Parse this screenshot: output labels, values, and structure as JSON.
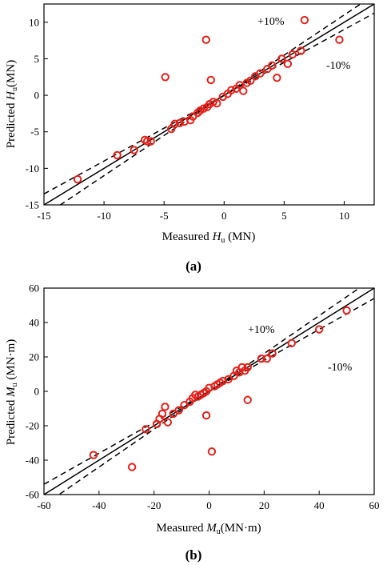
{
  "chart_data": [
    {
      "type": "scatter",
      "panel_label": "(a)",
      "xlabel": {
        "main": "Measured ",
        "italic": "H",
        "sub": "u",
        "unit": " (MN)"
      },
      "ylabel": {
        "main": "Predicted ",
        "italic": "H",
        "sub": "u",
        "unit": "(MN)"
      },
      "xlim": [
        -15,
        12.5
      ],
      "ylim": [
        -15,
        12.5
      ],
      "xticks": [
        -15,
        -10,
        -5,
        0,
        5,
        10
      ],
      "yticks": [
        -15,
        -10,
        -5,
        0,
        5,
        10
      ],
      "annotations": {
        "upper": "+10%",
        "lower": "-10%"
      },
      "marker_color": "#e8201a",
      "points": [
        [
          -12.2,
          -11.5
        ],
        [
          -8.9,
          -8.2
        ],
        [
          -7.5,
          -7.5
        ],
        [
          -6.6,
          -6.1
        ],
        [
          -6.4,
          -6.3
        ],
        [
          -6.1,
          -6.3
        ],
        [
          -4.9,
          2.5
        ],
        [
          -4.4,
          -4.6
        ],
        [
          -4.1,
          -3.9
        ],
        [
          -3.7,
          -3.8
        ],
        [
          -3.3,
          -3.6
        ],
        [
          -2.8,
          -3.4
        ],
        [
          -2.6,
          -2.9
        ],
        [
          -2.2,
          -2.4
        ],
        [
          -2.0,
          -2.1
        ],
        [
          -1.7,
          -1.8
        ],
        [
          -1.5,
          7.6
        ],
        [
          -1.4,
          -1.6
        ],
        [
          -1.2,
          -1.2
        ],
        [
          -1.1,
          2.1
        ],
        [
          -0.9,
          -0.9
        ],
        [
          -0.6,
          -1.1
        ],
        [
          -0.1,
          -0.2
        ],
        [
          0.3,
          0.2
        ],
        [
          0.6,
          0.7
        ],
        [
          1.0,
          0.9
        ],
        [
          1.3,
          1.4
        ],
        [
          1.6,
          0.6
        ],
        [
          1.9,
          1.7
        ],
        [
          2.2,
          2.0
        ],
        [
          2.6,
          2.6
        ],
        [
          3.0,
          3.0
        ],
        [
          3.6,
          3.6
        ],
        [
          4.0,
          4.1
        ],
        [
          4.4,
          2.4
        ],
        [
          4.8,
          5.0
        ],
        [
          5.3,
          4.3
        ],
        [
          5.7,
          5.6
        ],
        [
          6.4,
          6.1
        ],
        [
          6.7,
          10.3
        ],
        [
          9.6,
          7.6
        ]
      ]
    },
    {
      "type": "scatter",
      "panel_label": "(b)",
      "xlabel": {
        "main": "Measured ",
        "italic": "M",
        "sub": "u",
        "unit": "(MN·m)"
      },
      "ylabel": {
        "main": "Predicted ",
        "italic": "M",
        "sub": "u",
        "unit": " (MN·m)"
      },
      "xlim": [
        -60,
        60
      ],
      "ylim": [
        -60,
        60
      ],
      "xticks": [
        -60,
        -40,
        -20,
        0,
        20,
        40,
        60
      ],
      "yticks": [
        -60,
        -40,
        -20,
        0,
        20,
        40,
        60
      ],
      "annotations": {
        "upper": "+10%",
        "lower": "-10%"
      },
      "marker_color": "#e8201a",
      "points": [
        [
          -42,
          -37
        ],
        [
          -28,
          -44
        ],
        [
          -23,
          -22
        ],
        [
          -19,
          -19
        ],
        [
          -18,
          -16
        ],
        [
          -17,
          -13
        ],
        [
          -16,
          -9
        ],
        [
          -15,
          -18
        ],
        [
          -13,
          -13
        ],
        [
          -11,
          -11
        ],
        [
          -9,
          -8
        ],
        [
          -7,
          -6
        ],
        [
          -6,
          -4
        ],
        [
          -5,
          -2
        ],
        [
          -4,
          -3
        ],
        [
          -3,
          -2
        ],
        [
          -2,
          -1
        ],
        [
          -1,
          0
        ],
        [
          -1,
          -14
        ],
        [
          0,
          2
        ],
        [
          1,
          -35
        ],
        [
          2,
          3
        ],
        [
          3,
          4
        ],
        [
          4,
          5
        ],
        [
          5,
          6
        ],
        [
          7,
          7
        ],
        [
          9,
          9
        ],
        [
          10,
          12
        ],
        [
          11,
          11
        ],
        [
          12,
          14
        ],
        [
          13,
          12
        ],
        [
          14,
          14
        ],
        [
          14,
          -5
        ],
        [
          19,
          19
        ],
        [
          21,
          19
        ],
        [
          23,
          22
        ],
        [
          30,
          28
        ],
        [
          40,
          36
        ],
        [
          50,
          47
        ]
      ]
    }
  ]
}
